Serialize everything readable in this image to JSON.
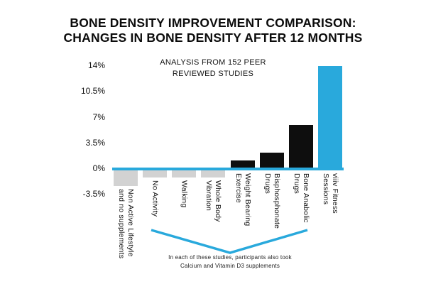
{
  "title": {
    "line1": "BONE DENSITY IMPROVEMENT COMPARISON:",
    "line2": "CHANGES IN BONE DENSITY AFTER 12 MONTHS"
  },
  "annotations": {
    "top": {
      "line1": "ANALYSIS FROM 152 PEER",
      "line2": "REVIEWED STUDIES"
    },
    "bottom": {
      "line1": "In each of these studies, participants also took",
      "line2": "Calcium and Vitamin D3 supplements"
    }
  },
  "colors": {
    "accent": "#29a9dc",
    "negative_bar": "#d2d2d2",
    "positive_bar": "#0e0e0e",
    "text": "#111111"
  },
  "chart_data": {
    "type": "bar",
    "title": "BONE DENSITY IMPROVEMENT COMPARISON: CHANGES IN BONE DENSITY AFTER 12 MONTHS",
    "subtitle": "ANALYSIS FROM 152 PEER REVIEWED STUDIES",
    "categories": [
      "Non Active Lifestyle and no supplements",
      "No Activity",
      "Walking",
      "Whole Body Vibration",
      "Weight Bearing Exercise",
      "Bisphosphonate Drugs",
      "Bone Anabolic Drugs",
      "viiiv Fitness Sessions"
    ],
    "category_label_lines": [
      [
        "Non Active Lifestyle",
        "and no supplements"
      ],
      [
        "No Activity"
      ],
      [
        "Walking"
      ],
      [
        "Whole Body",
        "Vibration"
      ],
      [
        "Weight Bearing",
        "Exercise"
      ],
      [
        "Bisphosphonate",
        "Drugs"
      ],
      [
        "Bone Anabolic",
        "Drugs"
      ],
      [
        "viiiv Fitness",
        "Sessions"
      ]
    ],
    "values": [
      -2.3,
      -1.2,
      -1.2,
      -1.2,
      1.2,
      2.2,
      6,
      14
    ],
    "bar_colors": [
      "#d2d2d2",
      "#d2d2d2",
      "#d2d2d2",
      "#d2d2d2",
      "#0e0e0e",
      "#0e0e0e",
      "#0e0e0e",
      "#29a9dc"
    ],
    "y_ticks": [
      "14%",
      "10.5%",
      "7%",
      "3.5%",
      "0%",
      "-3.5%"
    ],
    "y_tick_values": [
      14,
      10.5,
      7,
      3.5,
      0,
      -3.5
    ],
    "ylim": [
      -3.5,
      14
    ],
    "xlabel": "",
    "ylabel": "",
    "grid": false,
    "legend": false,
    "annotation": "In each of these studies, participants also took Calcium and Vitamin D3 supplements"
  }
}
